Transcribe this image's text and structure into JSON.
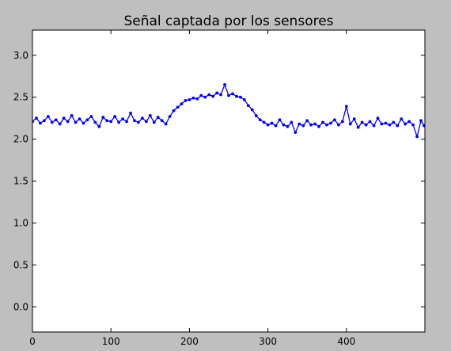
{
  "chart_data": {
    "type": "line",
    "title": "Señal captada por los sensores",
    "xlabel": "",
    "ylabel": "",
    "xlim": [
      0,
      500
    ],
    "ylim": [
      -0.3,
      3.3
    ],
    "x_ticks": [
      0,
      100,
      200,
      300,
      400
    ],
    "x_tick_labels": [
      "0",
      "100",
      "200",
      "300",
      "400"
    ],
    "y_ticks": [
      0.0,
      0.5,
      1.0,
      1.5,
      2.0,
      2.5,
      3.0
    ],
    "y_tick_labels": [
      "0.0",
      "0.5",
      "1.0",
      "1.5",
      "2.0",
      "2.5",
      "3.0"
    ],
    "grid": false,
    "legend": "none",
    "series": [
      {
        "color": "#0000ff",
        "marker": "dot",
        "x": [
          0,
          5,
          10,
          15,
          20,
          25,
          30,
          35,
          40,
          45,
          50,
          55,
          60,
          65,
          70,
          75,
          80,
          85,
          90,
          95,
          100,
          105,
          110,
          115,
          120,
          125,
          130,
          135,
          140,
          145,
          150,
          155,
          160,
          165,
          170,
          175,
          180,
          185,
          190,
          195,
          200,
          205,
          210,
          215,
          220,
          225,
          230,
          235,
          240,
          245,
          250,
          255,
          260,
          265,
          270,
          275,
          280,
          285,
          290,
          295,
          300,
          305,
          310,
          315,
          320,
          325,
          330,
          335,
          340,
          345,
          350,
          355,
          360,
          365,
          370,
          375,
          380,
          385,
          390,
          395,
          400,
          405,
          410,
          415,
          420,
          425,
          430,
          435,
          440,
          445,
          450,
          455,
          460,
          465,
          470,
          475,
          480,
          485,
          490,
          495,
          499
        ],
        "y": [
          2.21,
          2.25,
          2.19,
          2.22,
          2.27,
          2.2,
          2.23,
          2.18,
          2.25,
          2.21,
          2.28,
          2.2,
          2.24,
          2.19,
          2.23,
          2.27,
          2.2,
          2.15,
          2.26,
          2.22,
          2.21,
          2.27,
          2.2,
          2.24,
          2.21,
          2.31,
          2.22,
          2.2,
          2.25,
          2.21,
          2.28,
          2.2,
          2.26,
          2.22,
          2.18,
          2.27,
          2.34,
          2.38,
          2.42,
          2.46,
          2.47,
          2.49,
          2.48,
          2.52,
          2.5,
          2.53,
          2.51,
          2.55,
          2.53,
          2.65,
          2.52,
          2.54,
          2.51,
          2.5,
          2.47,
          2.4,
          2.35,
          2.28,
          2.23,
          2.2,
          2.17,
          2.19,
          2.16,
          2.23,
          2.17,
          2.15,
          2.2,
          2.08,
          2.18,
          2.16,
          2.22,
          2.17,
          2.18,
          2.15,
          2.2,
          2.17,
          2.19,
          2.23,
          2.17,
          2.21,
          2.39,
          2.18,
          2.24,
          2.14,
          2.2,
          2.17,
          2.21,
          2.16,
          2.25,
          2.18,
          2.19,
          2.17,
          2.2,
          2.16,
          2.24,
          2.18,
          2.21,
          2.17,
          2.03,
          2.22,
          2.16
        ]
      }
    ]
  }
}
